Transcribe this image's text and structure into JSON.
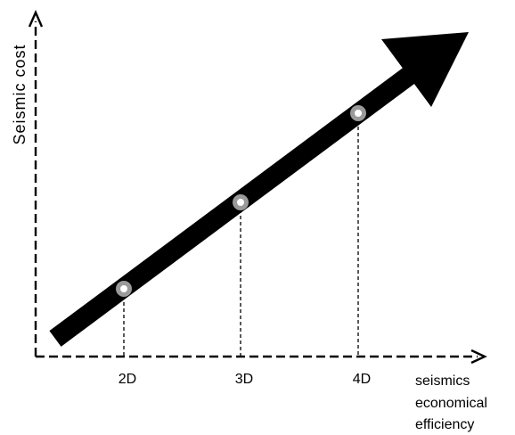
{
  "axes": {
    "y_label": "Seismic cost",
    "x_label_lines": [
      "seismics",
      "economical",
      "efficiency"
    ]
  },
  "markers": [
    {
      "label": "2D"
    },
    {
      "label": "3D"
    },
    {
      "label": "4D"
    }
  ],
  "colors": {
    "line": "#000000",
    "background": "#ffffff",
    "marker_ring": "#9a9a9a",
    "marker_center": "#ffffff"
  }
}
